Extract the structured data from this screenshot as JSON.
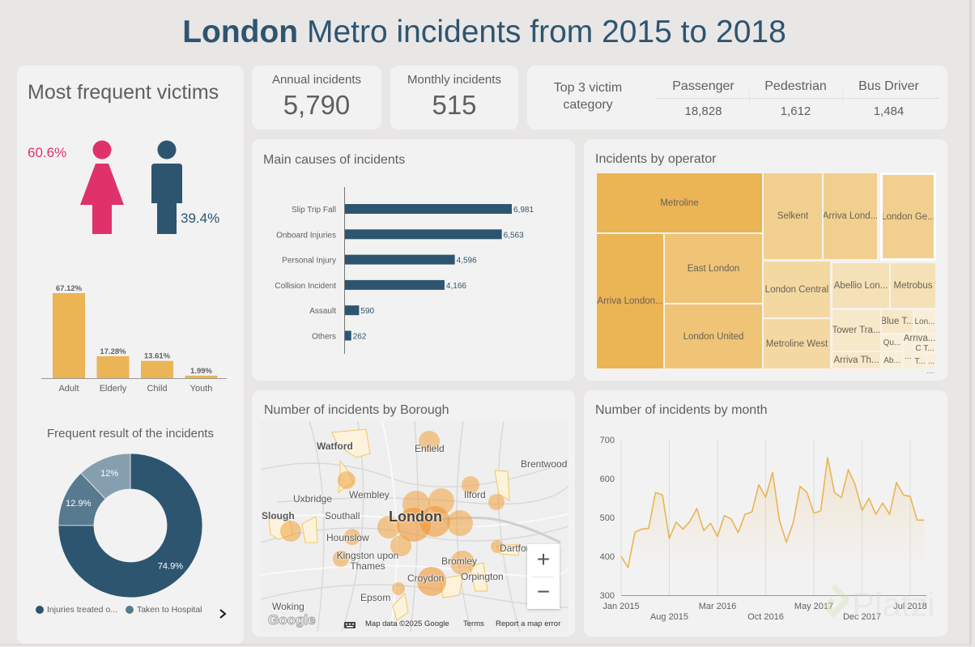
{
  "header": {
    "title_bold": "London",
    "title_rest": "Metro incidents from 2015 to 2018"
  },
  "colors": {
    "accent_dark": "#2d5570",
    "female": "#e0326a",
    "bar_gold": "#ebb455",
    "card_bg": "#f2f2f2",
    "page_bg": "#e9e6e6"
  },
  "victims": {
    "title": "Most frequent victims",
    "female_pct": "60.6%",
    "male_pct": "39.4%",
    "icons": {
      "female": "female-person-icon",
      "male": "male-person-icon"
    }
  },
  "age_chart": {
    "type": "bar",
    "categories": [
      "Adult",
      "Elderly",
      "Child",
      "Youth"
    ],
    "values": [
      67.12,
      17.28,
      13.61,
      1.99
    ],
    "labels": [
      "67.12%",
      "17.28%",
      "13.61%",
      "1.99%"
    ]
  },
  "result_chart": {
    "title": "Frequent result of the incidents",
    "type": "pie",
    "slices": [
      {
        "name": "Injuries treated o...",
        "value": 74.9,
        "label": "74.9%",
        "color": "#2d5570"
      },
      {
        "name": "Taken to Hospital",
        "value": 12.9,
        "label": "12.9%",
        "color": "#587a8f"
      },
      {
        "name": "",
        "value": 12.0,
        "label": "12%",
        "color": "#869faf"
      }
    ],
    "legend": [
      "Injuries treated o...",
      "Taken to Hospital"
    ],
    "next_icon": "chevron-right-icon"
  },
  "kpis": {
    "annual": {
      "label": "Annual incidents",
      "value": "5,790"
    },
    "monthly": {
      "label": "Monthly incidents",
      "value": "515"
    }
  },
  "top3": {
    "label": "Top 3 victim category",
    "items": [
      {
        "name": "Passenger",
        "value": "18,828"
      },
      {
        "name": "Pedestrian",
        "value": "1,612"
      },
      {
        "name": "Bus Driver",
        "value": "1,484"
      }
    ]
  },
  "chart_data": [
    {
      "type": "bar",
      "orientation": "horizontal",
      "title": "Main causes of incidents",
      "categories": [
        "Slip Trip Fall",
        "Onboard Injuries",
        "Personal Injury",
        "Collision Incident",
        "Assault",
        "Others"
      ],
      "values": [
        6981,
        6563,
        4596,
        4166,
        590,
        262
      ],
      "labels": [
        "6,981",
        "6,563",
        "4,596",
        "4,166",
        "590",
        "262"
      ],
      "color": "#2d5570"
    },
    {
      "type": "line",
      "title": "Number of incidents by month",
      "xlabel": "",
      "ylabel": "",
      "ylim": [
        300,
        700
      ],
      "yticks": [
        "700",
        "600",
        "500",
        "400",
        "300"
      ],
      "xticks": [
        "Jan 2015",
        "Aug 2015",
        "Mar 2016",
        "Oct 2016",
        "May 2017",
        "Dec 2017",
        "Jul 2018"
      ],
      "x_start": "Jan 2015",
      "values": [
        400,
        371,
        462,
        470,
        472,
        564,
        558,
        446,
        488,
        470,
        490,
        523,
        466,
        485,
        451,
        505,
        496,
        461,
        508,
        514,
        584,
        552,
        616,
        493,
        436,
        486,
        580,
        564,
        511,
        517,
        654,
        564,
        551,
        623,
        584,
        518,
        549,
        508,
        537,
        508,
        590,
        558,
        554,
        493,
        493
      ],
      "color": "#ebb455",
      "grid": true
    }
  ],
  "treemap": {
    "title": "Incidents by operator",
    "items": [
      {
        "label": "Metroline",
        "shade": 0
      },
      {
        "label": "Arriva London...",
        "shade": 0
      },
      {
        "label": "East London",
        "shade": 1
      },
      {
        "label": "London United",
        "shade": 1
      },
      {
        "label": "Selkent",
        "shade": 2
      },
      {
        "label": "Arriva Lond...",
        "shade": 2
      },
      {
        "label": "London Ge...",
        "shade": 2
      },
      {
        "label": "London Central",
        "shade": 3
      },
      {
        "label": "Metroline West",
        "shade": 3
      },
      {
        "label": "Abellio Lon...",
        "shade": 4
      },
      {
        "label": "Metrobus",
        "shade": 4
      },
      {
        "label": "Tower Tra...",
        "shade": 5
      },
      {
        "label": "Arriva Th...",
        "shade": 5
      },
      {
        "label": "Blue T...",
        "shade": 5
      },
      {
        "label": "Lon...",
        "shade": 6
      },
      {
        "label": "Qu...",
        "shade": 6
      },
      {
        "label": "Ab...",
        "shade": 6
      },
      {
        "label": "Arriva...",
        "shade": 6
      },
      {
        "label": "...",
        "shade": 6
      },
      {
        "label": "C T...",
        "shade": 6
      },
      {
        "label": "T...",
        "shade": 6
      },
      {
        "label": "...",
        "shade": 6
      }
    ],
    "more": "...."
  },
  "map": {
    "title": "Number of incidents by Borough",
    "places": [
      "Watford",
      "Enfield",
      "Brentwood",
      "Wembley",
      "Ilford",
      "Uxbridge",
      "Slough",
      "Southall",
      "London",
      "Hounslow",
      "Dartford",
      "Kingston upon Thames",
      "Bromley",
      "Orpington",
      "Croydon",
      "Epsom",
      "Woking"
    ],
    "zoom_in": "+",
    "zoom_out": "−",
    "google": "Google",
    "attribution": "Map data ©2025 Google",
    "terms": "Terms",
    "report": "Report a map error"
  },
  "watermark": "Platzi"
}
